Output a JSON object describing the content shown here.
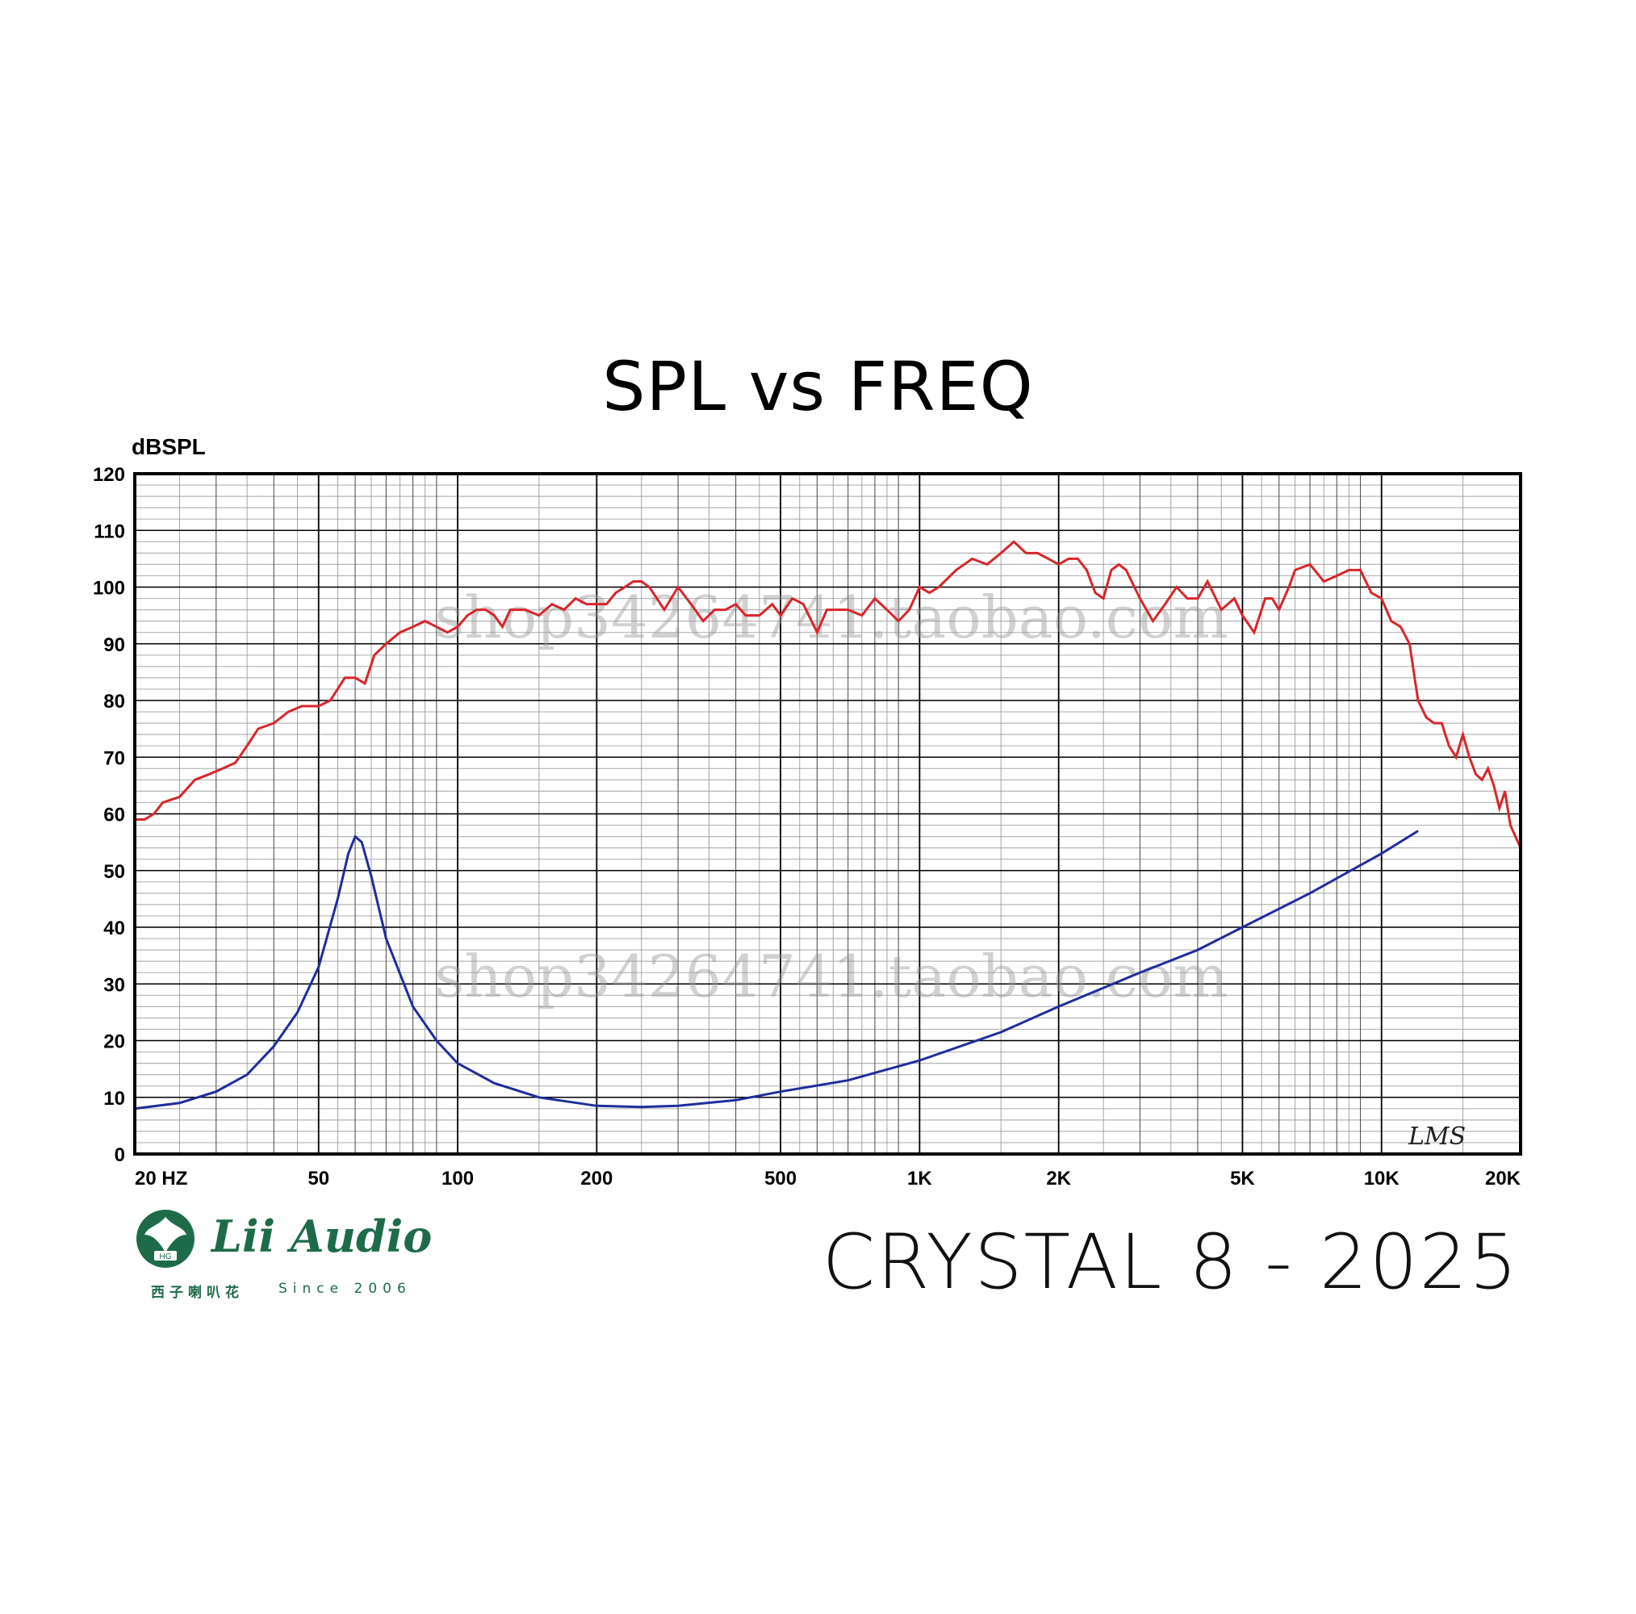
{
  "title": "SPL vs FREQ",
  "model_label": "CRYSTAL 8 - 2025",
  "watermark": "shop34264741.taobao.com",
  "signature": "LMS",
  "logo": {
    "brand": "Lii Audio",
    "tagline_cn": "西子喇叭花",
    "tagline_since": "Since 2006",
    "badge": "HG",
    "color": "#1e6b4a"
  },
  "colors": {
    "spl": "#d7262b",
    "impedance": "#1f2d9b",
    "grid": "#000000"
  },
  "chart_data": {
    "type": "line",
    "x_scale": "log",
    "xlim": [
      20,
      20000
    ],
    "ylim": [
      0,
      120
    ],
    "ylabel": "dBSPL",
    "y_ticks": [
      0,
      10,
      20,
      30,
      40,
      50,
      60,
      70,
      80,
      90,
      100,
      110,
      120
    ],
    "x_tick_labels": [
      {
        "value": 20,
        "label": "20 HZ"
      },
      {
        "value": 50,
        "label": "50"
      },
      {
        "value": 100,
        "label": "100"
      },
      {
        "value": 200,
        "label": "200"
      },
      {
        "value": 500,
        "label": "500"
      },
      {
        "value": 1000,
        "label": "1K"
      },
      {
        "value": 2000,
        "label": "2K"
      },
      {
        "value": 5000,
        "label": "5K"
      },
      {
        "value": 10000,
        "label": "10K"
      },
      {
        "value": 20000,
        "label": "20K"
      }
    ],
    "grid": true,
    "series": [
      {
        "id": "spl",
        "x": [
          20,
          21,
          22,
          23,
          25,
          27,
          29,
          31,
          33,
          35,
          37,
          40,
          43,
          46,
          50,
          53,
          57,
          60,
          63,
          66,
          70,
          75,
          80,
          85,
          90,
          95,
          100,
          105,
          110,
          115,
          120,
          125,
          130,
          140,
          150,
          160,
          170,
          180,
          190,
          200,
          210,
          220,
          230,
          240,
          250,
          260,
          270,
          280,
          300,
          320,
          340,
          360,
          380,
          400,
          420,
          450,
          480,
          500,
          530,
          560,
          600,
          630,
          660,
          700,
          750,
          800,
          850,
          900,
          950,
          1000,
          1050,
          1100,
          1200,
          1300,
          1400,
          1500,
          1600,
          1700,
          1800,
          1900,
          2000,
          2100,
          2200,
          2300,
          2400,
          2500,
          2600,
          2700,
          2800,
          3000,
          3200,
          3400,
          3600,
          3800,
          4000,
          4200,
          4500,
          4800,
          5000,
          5300,
          5600,
          5800,
          6000,
          6300,
          6500,
          7000,
          7500,
          8000,
          8500,
          9000,
          9500,
          10000,
          10500,
          11000,
          11500,
          12000,
          12500,
          13000,
          13500,
          14000,
          14500,
          15000,
          15500,
          16000,
          16500,
          17000,
          17500,
          18000,
          18500,
          19000,
          19500,
          20000
        ],
        "y": [
          59,
          59,
          60,
          62,
          63,
          66,
          67,
          68,
          69,
          72,
          75,
          76,
          78,
          79,
          79,
          80,
          84,
          84,
          83,
          88,
          90,
          92,
          93,
          94,
          93,
          92,
          93,
          95,
          96,
          96,
          95,
          93,
          96,
          96,
          95,
          97,
          96,
          98,
          97,
          97,
          97,
          99,
          100,
          101,
          101,
          100,
          98,
          96,
          100,
          97,
          94,
          96,
          96,
          97,
          95,
          95,
          97,
          95,
          98,
          97,
          92,
          96,
          96,
          96,
          95,
          98,
          96,
          94,
          96,
          100,
          99,
          100,
          103,
          105,
          104,
          106,
          108,
          106,
          106,
          105,
          104,
          105,
          105,
          103,
          99,
          98,
          103,
          104,
          103,
          98,
          94,
          97,
          100,
          98,
          98,
          101,
          96,
          98,
          95,
          92,
          98,
          98,
          96,
          100,
          103,
          104,
          101,
          102,
          103,
          103,
          99,
          98,
          94,
          93,
          90,
          80,
          77,
          76,
          76,
          72,
          70,
          74,
          70,
          67,
          66,
          68,
          65,
          61,
          64,
          58,
          56,
          54
        ]
      },
      {
        "id": "impedance",
        "x": [
          20,
          25,
          30,
          35,
          40,
          45,
          50,
          55,
          58,
          60,
          62,
          65,
          70,
          80,
          90,
          100,
          120,
          150,
          200,
          250,
          300,
          400,
          500,
          700,
          1000,
          1500,
          2000,
          3000,
          4000,
          5000,
          7000,
          10000,
          12000
        ],
        "y": [
          8,
          9,
          11,
          14,
          19,
          25,
          33,
          45,
          53,
          56,
          55,
          49,
          38,
          26,
          20,
          16,
          12.5,
          10,
          8.5,
          8.3,
          8.5,
          9.5,
          11,
          13,
          16.5,
          21.5,
          26,
          32,
          36,
          40,
          46,
          53,
          57
        ]
      }
    ]
  }
}
